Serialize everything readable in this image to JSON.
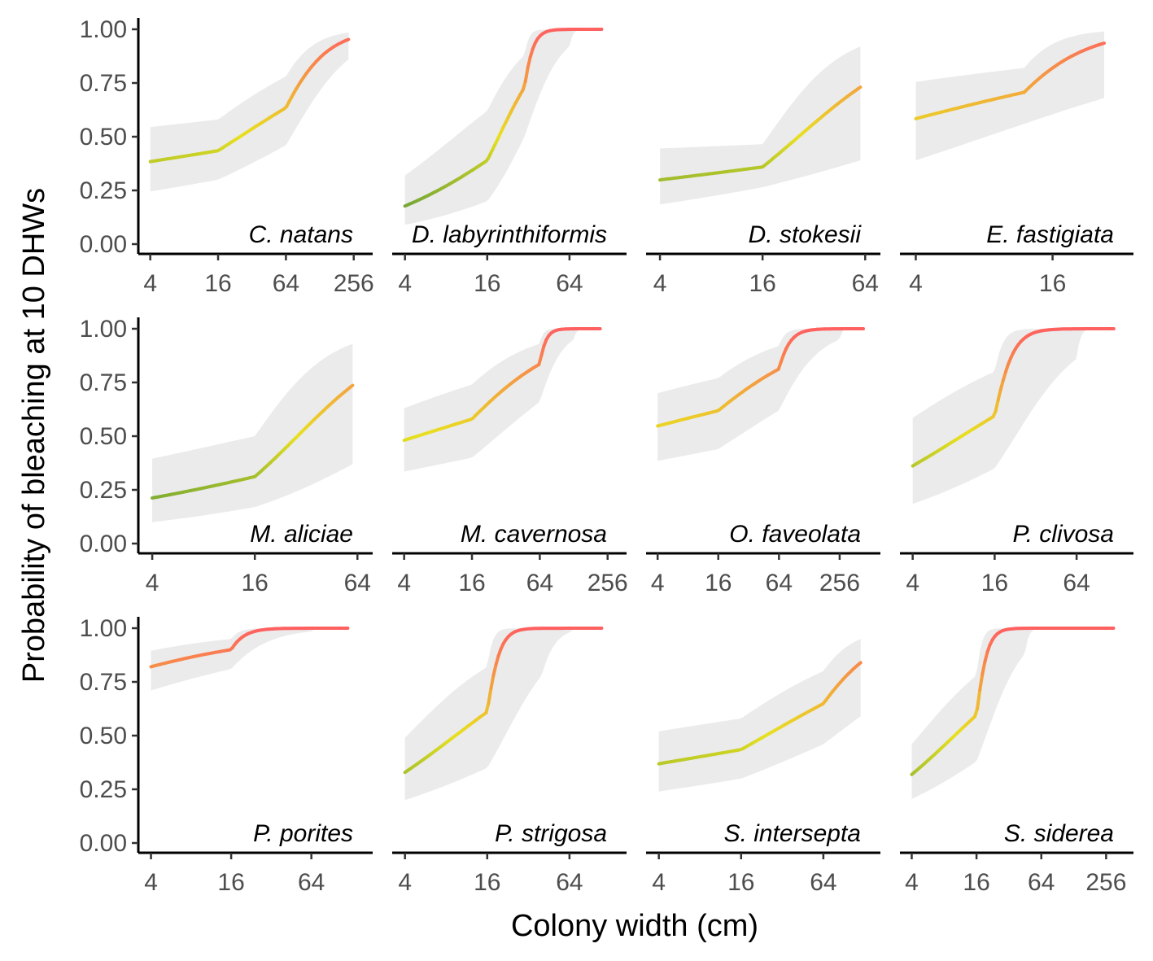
{
  "chart_data": {
    "type": "line",
    "xlabel": "Colony width (cm)",
    "ylabel": "Probability of bleaching at 10 DHWs",
    "x_scale": "log2",
    "ylim": [
      0,
      1
    ],
    "y_ticks": [
      "0.00",
      "0.25",
      "0.50",
      "0.75",
      "1.00"
    ],
    "grid": false,
    "color_scale": [
      "#5a9a3a",
      "#e8e020",
      "#ff6060"
    ],
    "panels": [
      {
        "label": "C. natans",
        "xlim": [
          3.7,
          330
        ],
        "x_ticks": [
          4,
          16,
          64,
          256
        ],
        "x_range": [
          4,
          230
        ],
        "logit_a": -0.6,
        "logit_b": 0.78,
        "logit_c": 0.132,
        "band": [
          [
            4,
            0.245,
            0.545
          ],
          [
            16,
            0.3,
            0.58
          ],
          [
            64,
            0.46,
            0.78
          ],
          [
            230,
            0.86,
            0.985
          ]
        ]
      },
      {
        "label": "D. labyrinthiformis",
        "xlim": [
          3.7,
          150
        ],
        "x_ticks": [
          4,
          16,
          64
        ],
        "x_range": [
          4,
          110
        ],
        "logit_a": -1.65,
        "logit_b": 0,
        "logit_c": 0.7,
        "band": [
          [
            4,
            0.09,
            0.32
          ],
          [
            16,
            0.2,
            0.62
          ],
          [
            30,
            0.5,
            0.88
          ],
          [
            64,
            0.92,
            1.0
          ],
          [
            110,
            1.0,
            1.0
          ]
        ]
      },
      {
        "label": "D. stokesii",
        "xlim": [
          3.7,
          72
        ],
        "x_ticks": [
          4,
          16,
          64
        ],
        "x_range": [
          4,
          60
        ],
        "logit_a": -0.85,
        "logit_b": 0.06,
        "logit_c": 0.19,
        "band": [
          [
            4,
            0.185,
            0.445
          ],
          [
            16,
            0.265,
            0.465
          ],
          [
            60,
            0.39,
            0.92
          ]
        ]
      },
      {
        "label": "E. fastigiata",
        "xlim": [
          3.7,
          34
        ],
        "x_ticks": [
          4,
          16
        ],
        "x_range": [
          4,
          27
        ],
        "logit_a": 0.33,
        "logit_b": 0.0,
        "logit_c": 0.845,
        "band": [
          [
            4,
            0.39,
            0.755
          ],
          [
            12,
            0.56,
            0.82
          ],
          [
            27,
            0.68,
            0.99
          ]
        ]
      },
      {
        "label": "M. aliciae",
        "xlim": [
          3.7,
          72
        ],
        "x_ticks": [
          4,
          16,
          64
        ],
        "x_range": [
          4,
          60
        ],
        "logit_a": -1.32,
        "logit_b": 0.18,
        "logit_c": 0.34,
        "band": [
          [
            4,
            0.1,
            0.395
          ],
          [
            16,
            0.17,
            0.5
          ],
          [
            60,
            0.37,
            0.93
          ]
        ]
      },
      {
        "label": "M. cavernosa",
        "xlim": [
          3.7,
          330
        ],
        "x_ticks": [
          4,
          16,
          64,
          256
        ],
        "x_range": [
          4,
          220
        ],
        "logit_a": -0.08,
        "logit_b": 0.4,
        "logit_c": 0.39,
        "band": [
          [
            4,
            0.335,
            0.63
          ],
          [
            16,
            0.4,
            0.74
          ],
          [
            64,
            0.66,
            0.93
          ],
          [
            128,
            0.95,
            1.0
          ],
          [
            220,
            1.0,
            1.0
          ]
        ]
      },
      {
        "label": "O. faveolata",
        "xlim": [
          3.7,
          560
        ],
        "x_ticks": [
          4,
          16,
          64,
          256
        ],
        "x_range": [
          4,
          440
        ],
        "logit_a": 0.19,
        "logit_b": 0.04,
        "logit_c": 0.165,
        "band": [
          [
            4,
            0.385,
            0.7
          ],
          [
            16,
            0.44,
            0.77
          ],
          [
            64,
            0.62,
            0.92
          ],
          [
            256,
            0.95,
            1.0
          ],
          [
            440,
            1.0,
            1.0
          ]
        ]
      },
      {
        "label": "P. clivosa",
        "xlim": [
          3.7,
          150
        ],
        "x_ticks": [
          4,
          16,
          64
        ],
        "x_range": [
          4,
          120
        ],
        "logit_a": -0.58,
        "logit_b": 0.55,
        "logit_c": 0.38,
        "band": [
          [
            4,
            0.185,
            0.585
          ],
          [
            16,
            0.35,
            0.8
          ],
          [
            64,
            0.86,
            1.0
          ],
          [
            120,
            1.0,
            1.0
          ]
        ]
      },
      {
        "label": "P. porites",
        "xlim": [
          3.7,
          165
        ],
        "x_ticks": [
          4,
          16,
          64
        ],
        "x_range": [
          4,
          120
        ],
        "logit_a": 1.52,
        "logit_b": 0.3,
        "logit_c": 0.135,
        "band": [
          [
            4,
            0.71,
            0.895
          ],
          [
            16,
            0.81,
            0.95
          ],
          [
            64,
            0.985,
            1.0
          ],
          [
            120,
            1.0,
            1.0
          ]
        ]
      },
      {
        "label": "P. strigosa",
        "xlim": [
          3.7,
          150
        ],
        "x_ticks": [
          4,
          16,
          64
        ],
        "x_range": [
          4,
          110
        ],
        "logit_a": -0.7,
        "logit_b": 0.6,
        "logit_c": 0.5,
        "band": [
          [
            4,
            0.2,
            0.49
          ],
          [
            16,
            0.35,
            0.82
          ],
          [
            40,
            0.78,
            1.0
          ],
          [
            64,
            0.98,
            1.0
          ],
          [
            110,
            1.0,
            1.0
          ]
        ]
      },
      {
        "label": "S. intersepta",
        "xlim": [
          3.7,
          150
        ],
        "x_ticks": [
          4,
          16,
          64
        ],
        "x_range": [
          4,
          120
        ],
        "logit_a": -0.53,
        "logit_b": 0.02,
        "logit_c": 0.175,
        "band": [
          [
            4,
            0.24,
            0.52
          ],
          [
            16,
            0.3,
            0.58
          ],
          [
            64,
            0.46,
            0.8
          ],
          [
            120,
            0.59,
            0.95
          ]
        ]
      },
      {
        "label": "S. siderea",
        "xlim": [
          3.7,
          400
        ],
        "x_ticks": [
          4,
          16,
          64,
          256
        ],
        "x_range": [
          4,
          300
        ],
        "logit_a": -0.73,
        "logit_b": 0.6,
        "logit_c": 0.6,
        "band": [
          [
            4,
            0.205,
            0.46
          ],
          [
            16,
            0.38,
            0.78
          ],
          [
            45,
            0.88,
            1.0
          ],
          [
            100,
            1.0,
            1.0
          ],
          [
            300,
            1.0,
            1.0
          ]
        ]
      }
    ]
  }
}
